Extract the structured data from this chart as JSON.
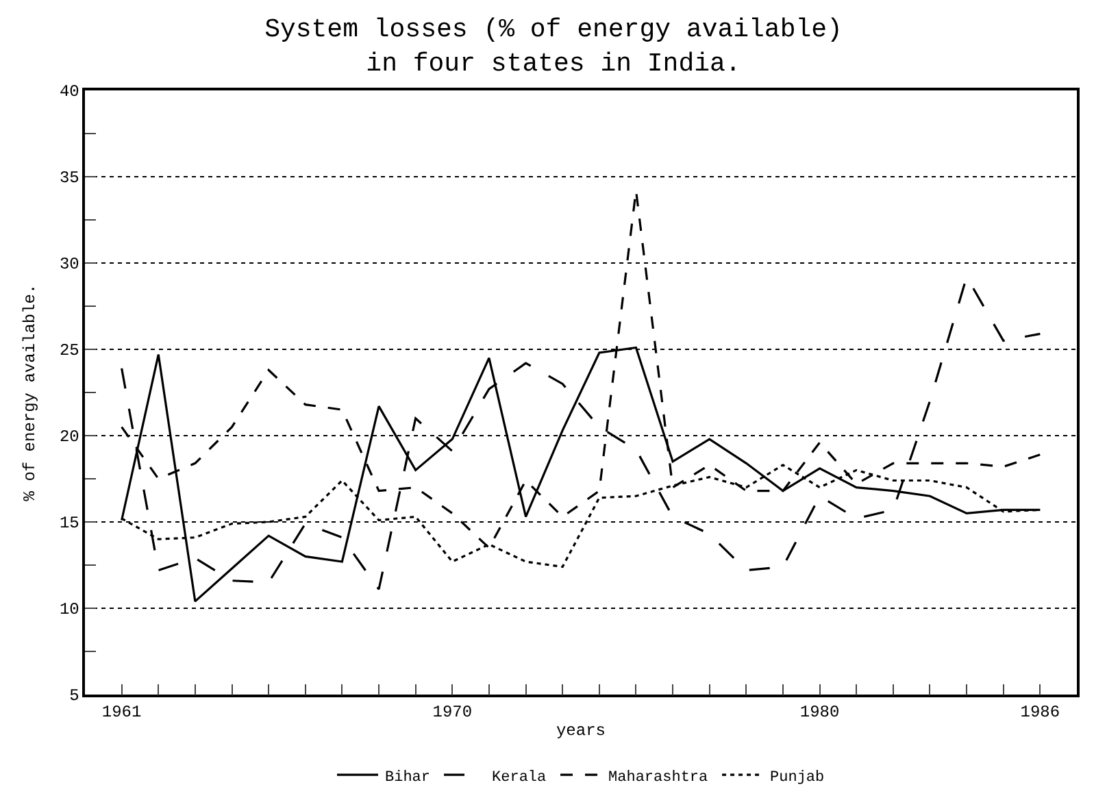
{
  "chart_data": {
    "type": "line",
    "title": "System losses (% of energy available)\nin four states in India.",
    "xlabel": "years",
    "ylabel": "% of energy available.",
    "x": [
      1961,
      1962,
      1963,
      1964,
      1965,
      1966,
      1967,
      1968,
      1969,
      1970,
      1971,
      1972,
      1973,
      1974,
      1975,
      1976,
      1977,
      1978,
      1979,
      1980,
      1981,
      1982,
      1983,
      1984,
      1985,
      1986
    ],
    "series": [
      {
        "name": "Bihar",
        "color": "#000000",
        "line_style": "solid",
        "values": [
          15.1,
          24.7,
          10.4,
          12.3,
          14.2,
          13.0,
          12.7,
          21.7,
          18.0,
          19.8,
          24.5,
          15.3,
          20.3,
          24.8,
          25.1,
          18.5,
          19.8,
          18.4,
          16.8,
          18.1,
          17.0,
          16.8,
          16.5,
          15.5,
          15.7,
          15.7
        ]
      },
      {
        "name": "Kerala",
        "color": "#000000",
        "line_style": "dashed",
        "values": [
          23.9,
          12.2,
          12.9,
          11.6,
          11.5,
          14.9,
          14.1,
          11.1,
          21.0,
          19.1,
          22.7,
          24.2,
          23.0,
          20.5,
          19.2,
          15.3,
          14.3,
          12.2,
          12.4,
          16.5,
          15.2,
          15.7,
          22.0,
          29.2,
          25.5,
          25.9
        ]
      },
      {
        "name": "Maharashtra",
        "color": "#000000",
        "line_style": "dashed",
        "values": [
          20.5,
          17.5,
          18.4,
          20.5,
          23.8,
          21.8,
          21.5,
          16.8,
          17.0,
          15.5,
          13.5,
          17.4,
          15.3,
          16.8,
          34.2,
          17.0,
          18.3,
          16.8,
          16.8,
          19.6,
          17.2,
          18.4,
          18.4,
          18.4,
          18.2,
          18.9
        ]
      },
      {
        "name": "Punjab",
        "color": "#000000",
        "line_style": "dotted",
        "values": [
          15.2,
          14.0,
          14.1,
          14.9,
          15.0,
          15.3,
          17.4,
          15.1,
          15.3,
          12.7,
          13.7,
          12.7,
          12.4,
          16.4,
          16.5,
          17.1,
          17.6,
          17.0,
          18.3,
          17.0,
          18.0,
          17.4,
          17.4,
          17.0,
          15.6,
          15.7
        ]
      }
    ],
    "xlim": [
      1960,
      1987
    ],
    "xticks": [
      1961,
      {
        "value": 1962,
        "label": null
      },
      {
        "value": 1963,
        "label": null
      },
      {
        "value": 1964,
        "label": null
      },
      {
        "value": 1965,
        "label": null
      },
      {
        "value": 1966,
        "label": null
      },
      {
        "value": 1967,
        "label": null
      },
      {
        "value": 1968,
        "label": null
      },
      {
        "value": 1969,
        "label": null
      },
      1970,
      {
        "value": 1971,
        "label": null
      },
      {
        "value": 1972,
        "label": null
      },
      {
        "value": 1973,
        "label": null
      },
      {
        "value": 1974,
        "label": null
      },
      {
        "value": 1975,
        "label": null
      },
      {
        "value": 1976,
        "label": null
      },
      {
        "value": 1977,
        "label": null
      },
      {
        "value": 1978,
        "label": null
      },
      {
        "value": 1979,
        "label": null
      },
      1980,
      {
        "value": 1981,
        "label": null
      },
      {
        "value": 1982,
        "label": null
      },
      {
        "value": 1983,
        "label": null
      },
      {
        "value": 1984,
        "label": null
      },
      {
        "value": 1985,
        "label": null
      },
      1986
    ],
    "ylim": [
      5,
      40
    ],
    "yticks": [
      5,
      {
        "value": 7.5,
        "label": null
      },
      10,
      {
        "value": 12.5,
        "label": null
      },
      15,
      {
        "value": 17.5,
        "label": null
      },
      20,
      {
        "value": 22.5,
        "label": null
      },
      25,
      {
        "value": 27.5,
        "label": null
      },
      30,
      {
        "value": 32.5,
        "label": null
      },
      35,
      {
        "value": 37.5,
        "label": null
      },
      40
    ],
    "grid": "y",
    "legend": "bottom",
    "marker": "none"
  }
}
